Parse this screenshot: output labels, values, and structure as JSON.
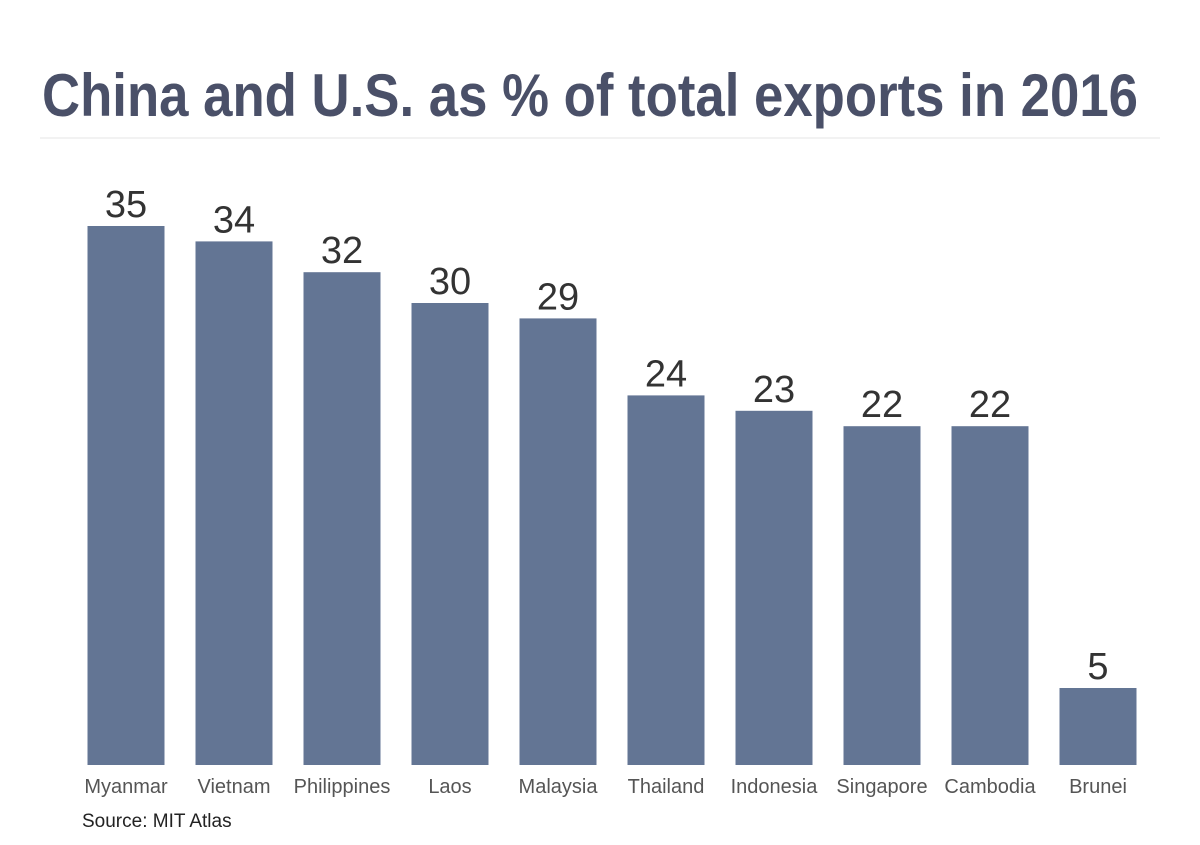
{
  "chart_data": {
    "type": "bar",
    "title": "China and U.S. as % of total exports in 2016",
    "categories": [
      "Myanmar",
      "Vietnam",
      "Philippines",
      "Laos",
      "Malaysia",
      "Thailand",
      "Indonesia",
      "Singapore",
      "Cambodia",
      "Brunei"
    ],
    "values": [
      35,
      34,
      32,
      30,
      29,
      24,
      23,
      22,
      22,
      5
    ],
    "color": "#637594",
    "source": "Source: MIT Atlas"
  }
}
